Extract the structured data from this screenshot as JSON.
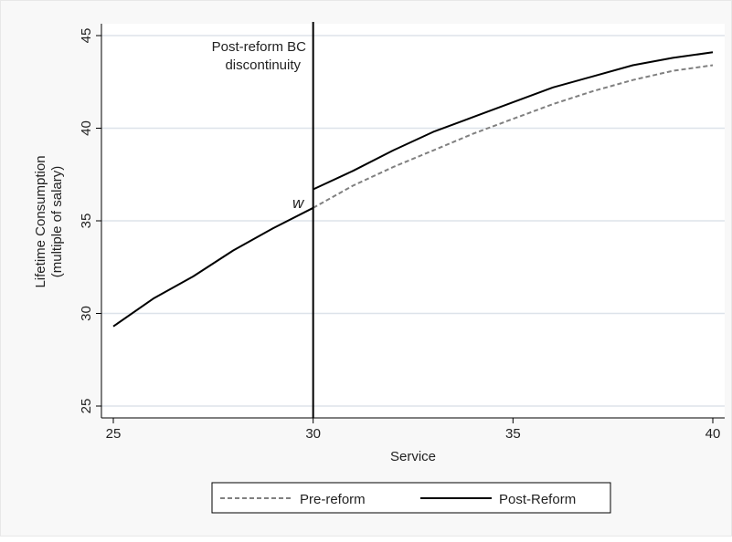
{
  "chart_data": {
    "type": "line",
    "title": "",
    "xlabel": "Service",
    "ylabel_lines": [
      "Lifetime Consumption",
      "(multiple of salary)"
    ],
    "xlim": [
      25,
      40
    ],
    "ylim": [
      25,
      45
    ],
    "xticks": [
      25,
      30,
      35,
      40
    ],
    "yticks": [
      25,
      30,
      35,
      40,
      45
    ],
    "grid": "horizontal",
    "legend_position": "bottom",
    "series": [
      {
        "name": "Pre-reform",
        "style": "dashed",
        "color": "#808080",
        "x": [
          30,
          31,
          32,
          33,
          34,
          35,
          36,
          37,
          38,
          39,
          40
        ],
        "y": [
          35.7,
          36.9,
          37.9,
          38.8,
          39.7,
          40.5,
          41.3,
          42.0,
          42.6,
          43.1,
          43.4
        ]
      },
      {
        "name": "Post-Reform",
        "style": "solid",
        "color": "#000000",
        "segments": [
          {
            "x": [
              25,
              26,
              27,
              28,
              29,
              30
            ],
            "y": [
              29.3,
              30.8,
              32.0,
              33.4,
              34.6,
              35.7
            ]
          },
          {
            "x": [
              30,
              31,
              32,
              33,
              34,
              35,
              36,
              37,
              38,
              39,
              40
            ],
            "y": [
              36.7,
              37.7,
              38.8,
              39.8,
              40.6,
              41.4,
              42.2,
              42.8,
              43.4,
              43.8,
              44.1
            ]
          }
        ]
      }
    ],
    "vline": {
      "x": 30,
      "label_lines": [
        "Post-reform BC",
        "discontinuity"
      ]
    },
    "point_annotation": {
      "x": 30,
      "y": 35.7,
      "text": "w"
    }
  }
}
